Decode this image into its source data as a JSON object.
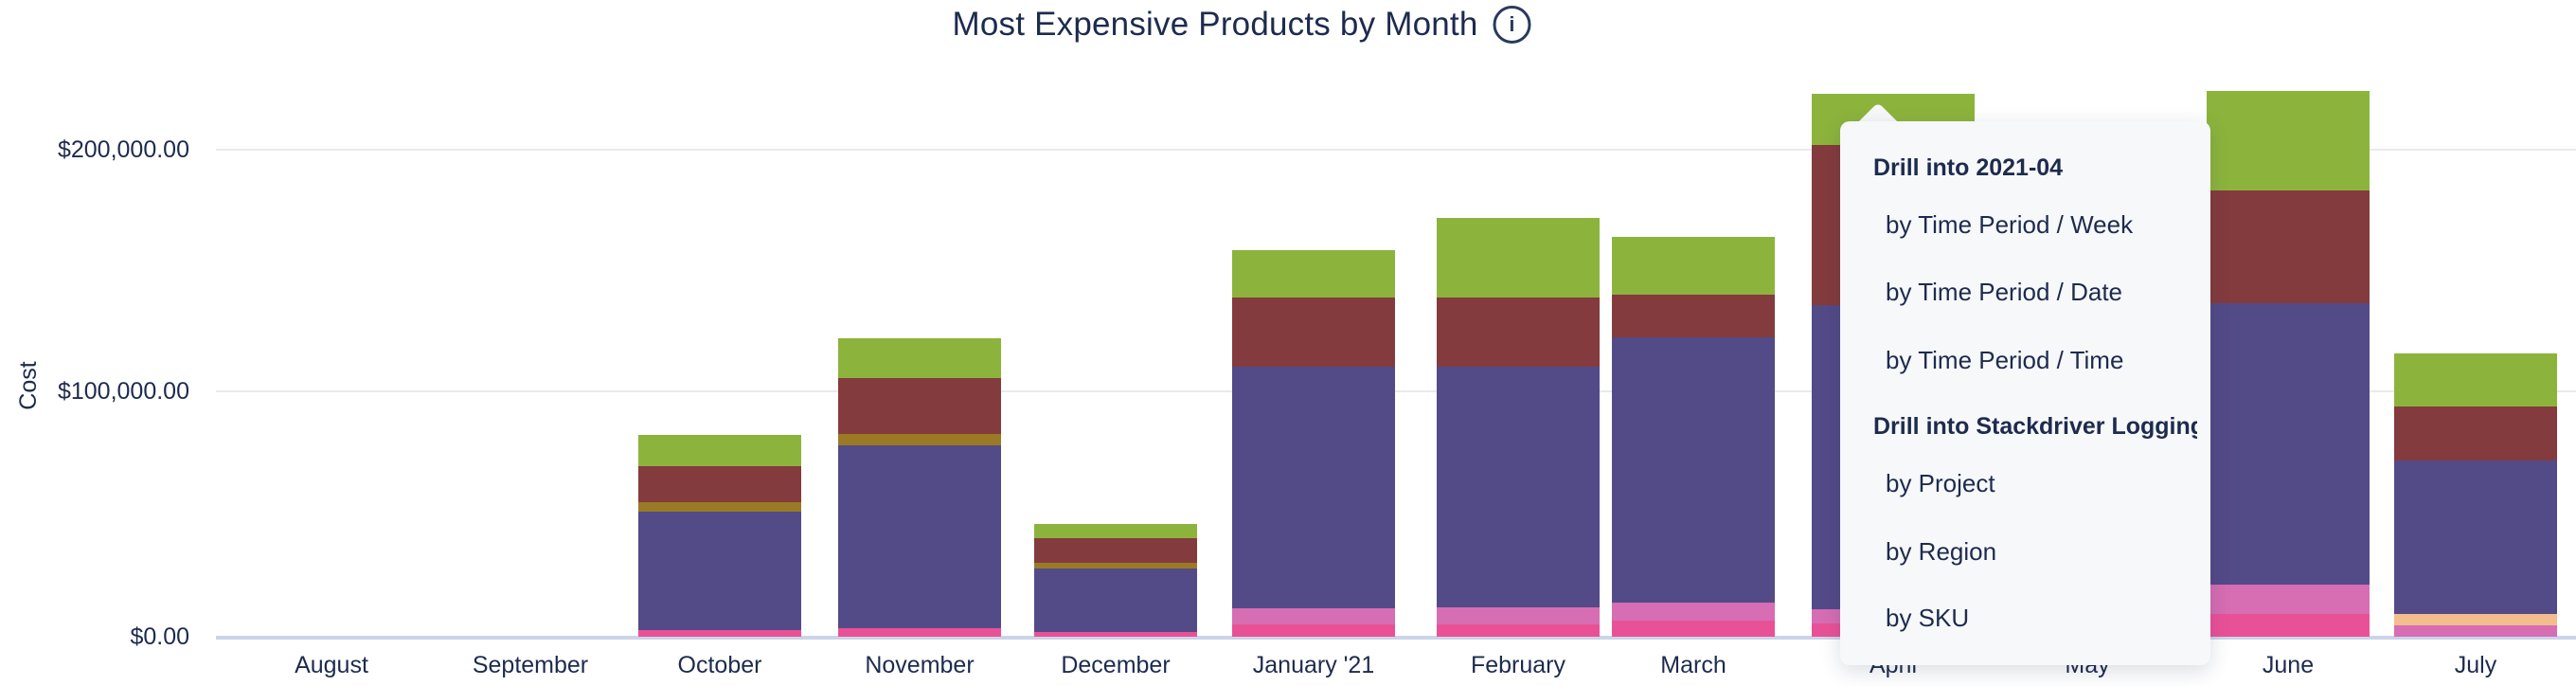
{
  "title": {
    "text": "Most Expensive Products by Month",
    "info_icon": "i"
  },
  "y_axis": {
    "label": "Cost",
    "tick_labels": [
      "$0.00",
      "$100,000.00",
      "$200,000.00"
    ]
  },
  "drill_menu": {
    "anchor_category": "April",
    "sections": [
      {
        "header": "Drill into 2021-04",
        "items": [
          "by Time Period / Week",
          "by Time Period / Date",
          "by Time Period / Time"
        ]
      },
      {
        "header": "Drill into Stackdriver Logging",
        "items": [
          "by Project",
          "by Region",
          "by SKU"
        ]
      }
    ]
  },
  "colors": {
    "text": "#1D2B4D",
    "gridline": "#E9EAEE",
    "baseline": "#CBD4E8",
    "menu_bg": "#F7F8FA"
  },
  "chart_data": {
    "type": "stacked_bar",
    "title": "Most Expensive Products by Month",
    "xlabel": "",
    "ylabel": "Cost",
    "unit": "USD",
    "ylim": [
      0,
      238000
    ],
    "grid": "horizontal",
    "legend": "none",
    "categories": [
      "August",
      "September",
      "October",
      "November",
      "December",
      "January '21",
      "February",
      "March",
      "April",
      "May",
      "June",
      "July"
    ],
    "palette": [
      {
        "key": "green",
        "hex": "#8CB43C",
        "series_name": "Stackdriver Logging"
      },
      {
        "key": "maroon",
        "hex": "#843B3D",
        "series_name": null
      },
      {
        "key": "olive",
        "hex": "#9B7A26",
        "series_name": null
      },
      {
        "key": "purple",
        "hex": "#534A88",
        "series_name": null
      },
      {
        "key": "orchid",
        "hex": "#D76DB3",
        "series_name": null
      },
      {
        "key": "pink",
        "hex": "#E95197",
        "series_name": null
      },
      {
        "key": "orange",
        "hex": "#F3BD8D",
        "series_name": null
      }
    ],
    "bars": [
      {
        "month": "August",
        "total": 0,
        "segments": []
      },
      {
        "month": "September",
        "total": 0,
        "segments": []
      },
      {
        "month": "October",
        "total": 82800,
        "segments": [
          [
            "pink",
            2700
          ],
          [
            "purple",
            48600
          ],
          [
            "olive",
            3900
          ],
          [
            "maroon",
            14800
          ],
          [
            "green",
            12800
          ]
        ]
      },
      {
        "month": "November",
        "total": 122600,
        "segments": [
          [
            "pink",
            3500
          ],
          [
            "purple",
            75100
          ],
          [
            "olive",
            4700
          ],
          [
            "maroon",
            23000
          ],
          [
            "green",
            16300
          ]
        ]
      },
      {
        "month": "December",
        "total": 46200,
        "segments": [
          [
            "pink",
            1900
          ],
          [
            "purple",
            26100
          ],
          [
            "olive",
            2300
          ],
          [
            "maroon",
            10100
          ],
          [
            "green",
            5800
          ]
        ]
      },
      {
        "month": "January '21",
        "total": 158800,
        "segments": [
          [
            "pink",
            5100
          ],
          [
            "orchid",
            6600
          ],
          [
            "purple",
            99200
          ],
          [
            "maroon",
            28400
          ],
          [
            "green",
            19500
          ]
        ]
      },
      {
        "month": "February",
        "total": 172000,
        "segments": [
          [
            "pink",
            5100
          ],
          [
            "orchid",
            7000
          ],
          [
            "purple",
            98800
          ],
          [
            "maroon",
            28400
          ],
          [
            "green",
            32700
          ]
        ]
      },
      {
        "month": "March",
        "total": 164100,
        "segments": [
          [
            "pink",
            6600
          ],
          [
            "orchid",
            7400
          ],
          [
            "purple",
            108900
          ],
          [
            "maroon",
            17500
          ],
          [
            "green",
            23700
          ]
        ]
      },
      {
        "month": "April",
        "total": 222900,
        "segments": [
          [
            "pink",
            5400
          ],
          [
            "orchid",
            5800
          ],
          [
            "purple",
            124900
          ],
          [
            "maroon",
            65800
          ],
          [
            "green",
            21000
          ]
        ]
      },
      {
        "month": "May",
        "total": null,
        "hidden_by_menu": true,
        "segments": null
      },
      {
        "month": "June",
        "total": 224200,
        "segments": [
          [
            "pink",
            9300
          ],
          [
            "orchid",
            12100
          ],
          [
            "purple",
            115600
          ],
          [
            "maroon",
            46300
          ],
          [
            "green",
            40900
          ]
        ]
      },
      {
        "month": "July",
        "total": 116200,
        "segments": [
          [
            "orchid",
            4500
          ],
          [
            "orange",
            4500
          ],
          [
            "purple",
            63200
          ],
          [
            "maroon",
            22200
          ],
          [
            "green",
            21800
          ]
        ]
      }
    ]
  }
}
